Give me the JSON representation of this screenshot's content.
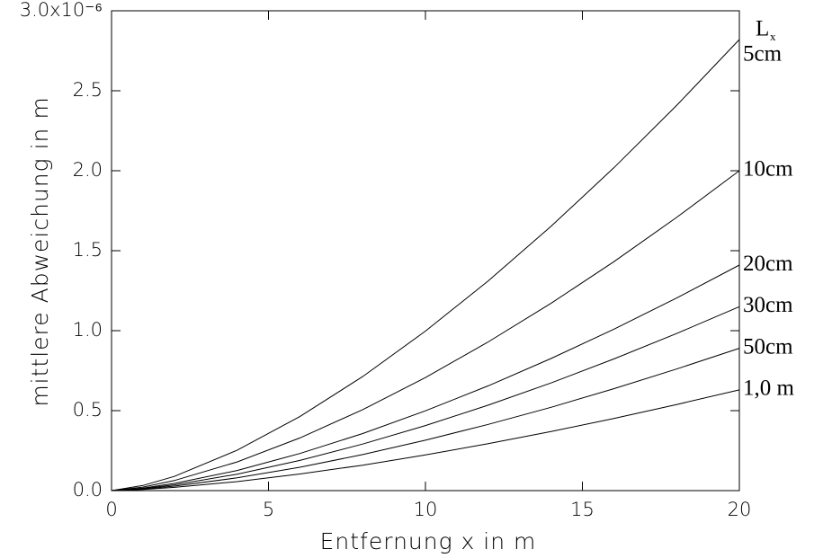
{
  "chart_data": {
    "type": "line",
    "x_label": "Entfernung x in m",
    "y_label": "mittlere Abweichung in m",
    "legend_title": "L",
    "legend_title_sub": "x",
    "x": [
      0,
      1,
      2,
      4,
      6,
      8,
      10,
      12,
      14,
      16,
      18,
      20
    ],
    "series": [
      {
        "name": "5cm",
        "color": "#000000",
        "values": [
          0,
          0.032,
          0.089,
          0.252,
          0.463,
          0.713,
          0.997,
          1.311,
          1.652,
          2.018,
          2.408,
          2.82
        ]
      },
      {
        "name": "10cm",
        "color": "#000000",
        "values": [
          0,
          0.022,
          0.063,
          0.179,
          0.329,
          0.506,
          0.707,
          0.93,
          1.171,
          1.431,
          1.708,
          2.0
        ]
      },
      {
        "name": "20cm",
        "color": "#000000",
        "values": [
          0,
          0.016,
          0.045,
          0.126,
          0.232,
          0.357,
          0.499,
          0.655,
          0.826,
          1.009,
          1.204,
          1.41
        ]
      },
      {
        "name": "30cm",
        "color": "#000000",
        "values": [
          0,
          0.013,
          0.036,
          0.103,
          0.189,
          0.291,
          0.407,
          0.534,
          0.673,
          0.823,
          0.982,
          1.15
        ]
      },
      {
        "name": "50cm",
        "color": "#000000",
        "values": [
          0,
          0.01,
          0.028,
          0.08,
          0.146,
          0.225,
          0.315,
          0.414,
          0.521,
          0.637,
          0.76,
          0.89
        ]
      },
      {
        "name": "1,0 m",
        "color": "#000000",
        "values": [
          0,
          0.007,
          0.02,
          0.056,
          0.104,
          0.159,
          0.223,
          0.293,
          0.369,
          0.451,
          0.538,
          0.63
        ]
      }
    ],
    "xlim": [
      0,
      20
    ],
    "xticks": [
      0,
      5,
      10,
      15,
      20
    ],
    "ylim": [
      0,
      3.0
    ],
    "yticks": [
      {
        "value": 0.0,
        "label": "0.0"
      },
      0.5,
      {
        "value": 1.0,
        "label": "1.0"
      },
      1.5,
      {
        "value": 2.0,
        "label": "2.0"
      },
      2.5,
      {
        "value": 3.0,
        "label": "3.0x10⁻⁶"
      }
    ]
  }
}
